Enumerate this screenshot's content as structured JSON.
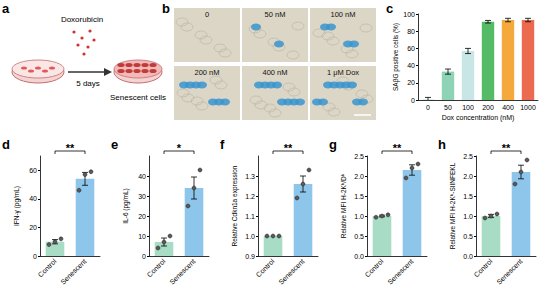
{
  "schematic": {
    "panel_label": "a",
    "drug": "Doxorubicin",
    "duration": "5 days",
    "outcome": "Senescent cells"
  },
  "micrographs": {
    "panel_label": "b",
    "images": [
      "0",
      "50 nM",
      "100 nM",
      "200 nM",
      "400 nM",
      "1 μM Dox"
    ]
  },
  "chart_data": [
    {
      "panel_label": "c",
      "type": "bar",
      "xlabel": "Dox concentration (nM)",
      "ylabel": "SAβG positive cells (%)",
      "categories": [
        "0",
        "50",
        "100",
        "200",
        "400",
        "1000"
      ],
      "values": [
        1,
        33,
        57,
        91,
        93,
        93
      ],
      "errors": [
        2,
        3,
        3,
        1.5,
        2,
        2
      ],
      "colors": [
        "#d8eee6",
        "#8fd3b6",
        "#c8e6e6",
        "#55bb66",
        "#f5a83c",
        "#ec6a50"
      ],
      "ylim": [
        0,
        100
      ],
      "yticks": [
        0,
        20,
        40,
        60,
        80,
        100
      ],
      "grid": false
    },
    {
      "panel_label": "d",
      "type": "bar",
      "ylabel": "IFN-γ (pg/mL)",
      "categories": [
        "Control",
        "Senescent"
      ],
      "values": [
        10,
        54
      ],
      "errors": [
        1.5,
        4.5
      ],
      "points": [
        [
          8,
          10,
          12
        ],
        [
          46,
          57,
          59
        ]
      ],
      "colors": [
        "#a8dcc4",
        "#8ec5ea"
      ],
      "significance": "**",
      "ylim": [
        0,
        70
      ],
      "yticks": [
        0,
        20,
        40,
        60
      ],
      "grid": false
    },
    {
      "panel_label": "e",
      "type": "bar",
      "ylabel": "IL-6 (pg/mL)",
      "categories": [
        "Control",
        "Senescent"
      ],
      "values": [
        7,
        34
      ],
      "errors": [
        2,
        5.5
      ],
      "points": [
        [
          4,
          7,
          10
        ],
        [
          25,
          34,
          43
        ]
      ],
      "colors": [
        "#a8dcc4",
        "#8ec5ea"
      ],
      "significance": "*",
      "ylim": [
        0,
        50
      ],
      "yticks": [
        0,
        10,
        20,
        30,
        40
      ],
      "grid": false
    },
    {
      "panel_label": "f",
      "type": "bar",
      "ylabel": "Relative Cdkn1a expression",
      "categories": [
        "Control",
        "Senescent"
      ],
      "values": [
        1,
        1.26
      ],
      "errors": [
        0,
        0.04
      ],
      "points": [
        [
          1,
          1,
          1
        ],
        [
          1.19,
          1.26,
          1.33
        ]
      ],
      "colors": [
        "#a8dcc4",
        "#8ec5ea"
      ],
      "significance": "**",
      "ylim": [
        0.9,
        1.4
      ],
      "yticks": [
        0.9,
        {
          "value": 1,
          "label": "1.0"
        },
        1.1,
        1.2,
        1.3
      ],
      "grid": false
    },
    {
      "panel_label": "g",
      "type": "bar",
      "ylabel": "Relative MFI H-2Kᵇ/Dᵇ",
      "categories": [
        "Control",
        "Senescent"
      ],
      "values": [
        1,
        2.15
      ],
      "errors": [
        0.02,
        0.13
      ],
      "points": [
        [
          0.97,
          1,
          1.03
        ],
        [
          1.95,
          2.2,
          2.3
        ]
      ],
      "colors": [
        "#a8dcc4",
        "#8ec5ea"
      ],
      "significance": "**",
      "ylim": [
        0,
        2.5
      ],
      "yticks": [
        {
          "value": 0,
          "label": "0.0"
        },
        0.5,
        {
          "value": 1,
          "label": "1.0"
        },
        1.5,
        {
          "value": 2,
          "label": "2.0"
        },
        2.5
      ],
      "grid": false
    },
    {
      "panel_label": "h",
      "type": "bar",
      "ylabel": "Relative MFI H-2Kᵇ-SIINFEKL",
      "categories": [
        "Control",
        "Senescent"
      ],
      "values": [
        1,
        2.1
      ],
      "errors": [
        0.04,
        0.17
      ],
      "points": [
        [
          0.95,
          1,
          1.05
        ],
        [
          1.8,
          2.1,
          2.4
        ]
      ],
      "colors": [
        "#a8dcc4",
        "#8ec5ea"
      ],
      "significance": "**",
      "ylim": [
        0,
        2.5
      ],
      "yticks": [
        {
          "value": 0,
          "label": "0.0"
        },
        0.5,
        {
          "value": 1,
          "label": "1.0"
        },
        1.5,
        {
          "value": 2,
          "label": "2.0"
        },
        2.5
      ],
      "grid": false
    }
  ]
}
